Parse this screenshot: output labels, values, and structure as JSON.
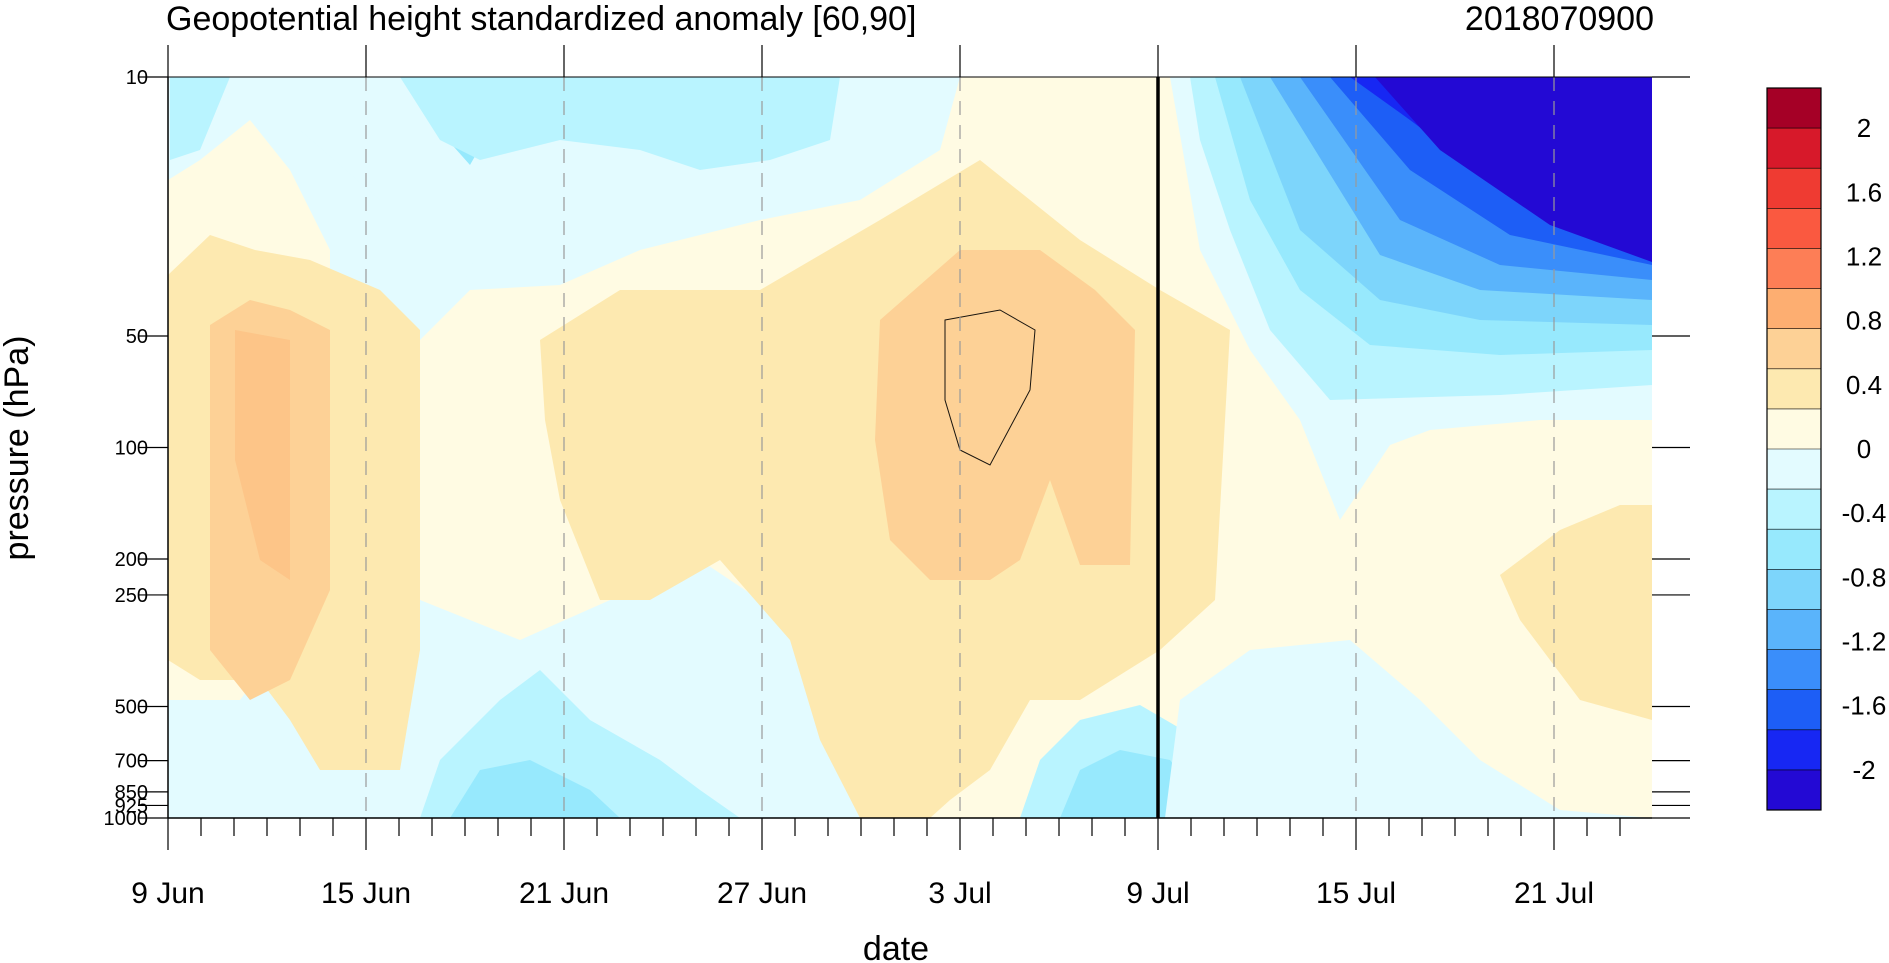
{
  "chart_data": {
    "type": "heatmap",
    "title": "Geopotential height standardized anomaly [60,90]",
    "subtitle": "2018070900",
    "xlabel": "date",
    "ylabel": "pressure (hPa)",
    "x_ticks": [
      "9 Jun",
      "15 Jun",
      "21 Jun",
      "27 Jun",
      "3 Jul",
      "9 Jul",
      "15 Jul",
      "21 Jul"
    ],
    "y_ticks": [
      "10",
      "50",
      "100",
      "200",
      "250",
      "500",
      "700",
      "850",
      "925",
      "1000"
    ],
    "y_levels": [
      10,
      50,
      100,
      200,
      250,
      500,
      700,
      850,
      925,
      1000
    ],
    "y_scale": "log",
    "colorbar": {
      "labels": [
        "2",
        "1.6",
        "1.2",
        "0.8",
        "0.4",
        "0",
        "-0.4",
        "-0.8",
        "-1.2",
        "-1.6",
        "-2"
      ],
      "colors": [
        "#a50026",
        "#d7192a",
        "#ef3b32",
        "#fa5940",
        "#fd7e56",
        "#fdae71",
        "#fdd196",
        "#fde9b0",
        "#fffbe3",
        "#e3fbff",
        "#b9f4ff",
        "#97e9fd",
        "#7dd5fb",
        "#5ab4fb",
        "#3a8efa",
        "#1d5ef6",
        "#1727f3",
        "#2309d4"
      ]
    },
    "current_date_line": "9 Jul",
    "anomaly_pattern": [
      {
        "period": "9 Jun - 17 Jun",
        "levels": "10-1000",
        "value": 0.8
      },
      {
        "period": "18 Jun - 21 Jun",
        "levels": "10-1000",
        "value": -0.2
      },
      {
        "period": "22 Jun - 9 Jul",
        "levels": "50-300",
        "value": 0.8
      },
      {
        "period": "18 Jun - 26 Jun",
        "levels": "850-1000",
        "value": -0.8
      },
      {
        "period": "6 Jul - 10 Jul",
        "levels": "850-1000",
        "value": -0.8
      },
      {
        "period": "15 Jul - 24 Jul",
        "levels": "10-50",
        "value": -2.2
      },
      {
        "period": "20 Jul - 24 Jul",
        "levels": "200-500",
        "value": 0.4
      }
    ]
  }
}
